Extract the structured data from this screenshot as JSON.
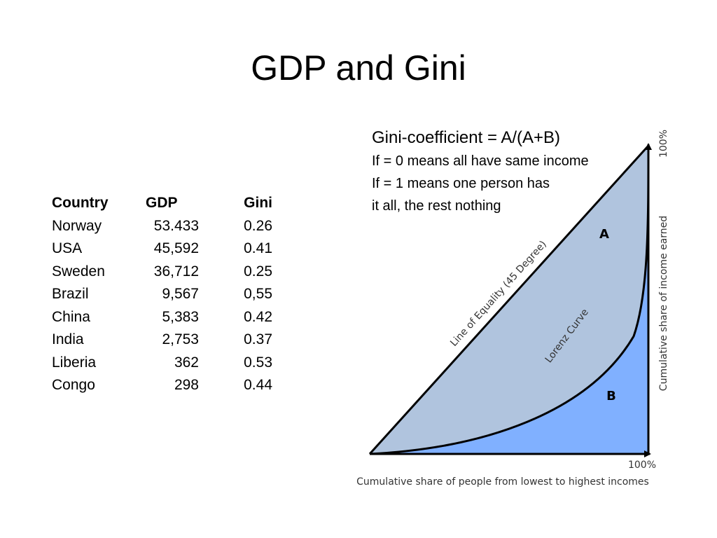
{
  "title": "GDP and Gini",
  "table": {
    "headers": [
      "Country",
      "GDP",
      "Gini"
    ],
    "rows": [
      [
        "Norway",
        "53.433",
        "0.26"
      ],
      [
        "USA",
        "45,592",
        "0.41"
      ],
      [
        "Sweden",
        "36,712",
        "0.25"
      ],
      [
        "Brazil",
        "9,567",
        "0,55"
      ],
      [
        "China",
        "5,383",
        "0.42"
      ],
      [
        "India",
        "2,753",
        "0.37"
      ],
      [
        "Liberia",
        "362",
        "0.53"
      ],
      [
        "Congo",
        "298",
        "0.44"
      ]
    ]
  },
  "explanation": {
    "formula": "Gini-coefficient = A/(A+B)",
    "line1": "If = 0  means all have same income",
    "line2": "If = 1 means one person has",
    "line3": "it all, the rest nothing"
  },
  "diagram": {
    "equality_label": "Line of Equality (45 Degree)",
    "lorenz_label": "Lorenz Curve",
    "area_a": "A",
    "area_b": "B",
    "x_end": "100%",
    "y_end": "100%",
    "x_axis_label": "Cumulative share of people from lowest to highest incomes",
    "y_axis_label": "Cumulative share of income earned",
    "colors": {
      "area_a": "#b0c4de",
      "area_b": "#80b0ff",
      "line": "#000000"
    }
  }
}
